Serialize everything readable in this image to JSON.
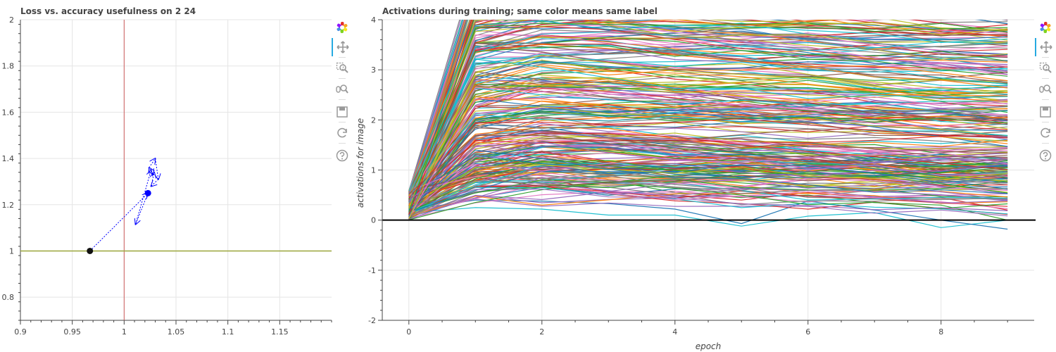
{
  "colors": {
    "grid": "#e5e5e5",
    "axis": "#444444",
    "trajectory": "#0000ff",
    "start_point": "#111111",
    "vline": "#cd5c5c",
    "hline": "#9aa63b",
    "zero_line": "#000000",
    "toolbar_active": "#26aae1",
    "palette": [
      "#1f77b4",
      "#ff7f0e",
      "#2ca02c",
      "#d62728",
      "#9467bd",
      "#8c564b",
      "#e377c2",
      "#7f7f7f",
      "#bcbd22",
      "#17becf"
    ]
  },
  "toolbar": {
    "tools": [
      {
        "icon": "bokeh-logo-icon"
      },
      {
        "icon": "pan-icon",
        "active": true
      },
      {
        "icon": "box-zoom-icon"
      },
      {
        "icon": "wheel-zoom-icon"
      },
      {
        "icon": "save-icon"
      },
      {
        "icon": "reset-icon"
      },
      {
        "icon": "help-icon"
      }
    ]
  },
  "chart_data": [
    {
      "type": "scatter",
      "title": "Loss vs. accuracy usefulness on 2 24",
      "xlabel": "",
      "ylabel": "",
      "xlim": [
        0.9,
        1.2
      ],
      "ylim": [
        0.7,
        2.0
      ],
      "xticks": [
        0.9,
        0.95,
        1,
        1.05,
        1.1,
        1.15
      ],
      "xtick_labels": [
        "0.9",
        "0.95",
        "1",
        "1.05",
        "1.1",
        "1.15"
      ],
      "yticks": [
        0.8,
        1,
        1.2,
        1.4,
        1.6,
        1.8,
        2
      ],
      "ytick_labels": [
        "0.8",
        "1",
        "1.2",
        "1.4",
        "1.6",
        "1.8",
        "2"
      ],
      "grid": true,
      "reference_lines": {
        "vertical_x": 1,
        "horizontal_y": 1
      },
      "start_point": {
        "x": 0.967,
        "y": 1.0
      },
      "current_point": {
        "x": 1.023,
        "y": 1.25
      },
      "trajectory": {
        "x": [
          0.967,
          1.023,
          1.011,
          1.026,
          1.028,
          1.024,
          1.03,
          1.033,
          1.026,
          1.029
        ],
        "y": [
          1.0,
          1.25,
          1.115,
          1.35,
          1.33,
          1.36,
          1.4,
          1.31,
          1.28,
          1.34
        ]
      }
    },
    {
      "type": "line",
      "title": "Activations during training; same color means same label",
      "xlabel": "epoch",
      "ylabel": "activations for image",
      "xlim": [
        -0.4,
        9.4
      ],
      "ylim": [
        -2,
        4
      ],
      "xticks": [
        0,
        2,
        4,
        6,
        8
      ],
      "xtick_labels": [
        "0",
        "2",
        "4",
        "6",
        "8"
      ],
      "yticks": [
        -2,
        -1,
        0,
        1,
        2,
        3,
        4
      ],
      "ytick_labels": [
        "-2",
        "-1",
        "0",
        "1",
        "2",
        "3",
        "4"
      ],
      "grid": true,
      "zero_line": true,
      "x": [
        0,
        1,
        2,
        3,
        4,
        5,
        6,
        7,
        8,
        9
      ],
      "series_count": 300,
      "series_sample": [
        {
          "color_index": 9,
          "values": [
            0.15,
            0.25,
            0.22,
            0.1,
            0.1,
            -0.12,
            0.08,
            0.15,
            -0.15,
            0.0
          ]
        },
        {
          "color_index": 0,
          "values": [
            0.2,
            0.4,
            0.38,
            0.33,
            0.22,
            -0.07,
            0.38,
            0.2,
            0.0,
            -0.18
          ]
        },
        {
          "color_index": 2,
          "values": [
            0.25,
            0.55,
            0.7,
            0.8,
            0.55,
            0.45,
            0.5,
            0.35,
            0.3,
            0.0
          ]
        },
        {
          "color_index": 3,
          "values": [
            0.3,
            0.75,
            0.85,
            0.55,
            0.5,
            0.4,
            0.55,
            0.45,
            0.45,
            0.2
          ]
        }
      ],
      "series_generation": {
        "per_series": "values[0] ~ U(0,0.6); values[1] = values[0] + delta, delta ~ U(0.3,4.5); later epochs follow a slowly drifting, slightly decaying random walk",
        "target_quantiles_by_epoch": {
          "0": [
            0.0,
            0.6
          ],
          "1": [
            0.25,
            4.0
          ],
          "2": [
            0.25,
            4.0
          ],
          "5": [
            -0.12,
            4.0
          ],
          "9": [
            -0.18,
            4.0
          ]
        },
        "seed": 24
      }
    }
  ]
}
